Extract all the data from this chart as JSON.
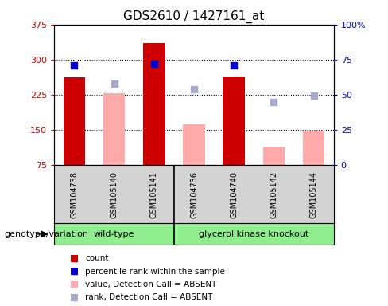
{
  "title": "GDS2610 / 1427161_at",
  "samples": [
    "GSM104738",
    "GSM105140",
    "GSM105141",
    "GSM104736",
    "GSM104740",
    "GSM105142",
    "GSM105144"
  ],
  "count_values": [
    262,
    null,
    335,
    null,
    264,
    null,
    null
  ],
  "value_absent": [
    null,
    228,
    null,
    163,
    null,
    115,
    148
  ],
  "rank_absent": [
    null,
    248,
    null,
    237,
    null,
    210,
    224
  ],
  "percentile_rank": [
    71,
    null,
    72,
    null,
    71,
    null,
    null
  ],
  "group_labels": [
    "wild-type",
    "glycerol kinase knockout"
  ],
  "wt_indices": [
    0,
    1,
    2
  ],
  "gk_indices": [
    3,
    4,
    5,
    6
  ],
  "ylim_left": [
    75,
    375
  ],
  "ylim_right": [
    0,
    100
  ],
  "yticks_left": [
    75,
    150,
    225,
    300,
    375
  ],
  "yticks_right": [
    0,
    25,
    50,
    75,
    100
  ],
  "ytick_labels_left": [
    "75",
    "150",
    "225",
    "300",
    "375"
  ],
  "ytick_labels_right": [
    "0",
    "25",
    "50",
    "75",
    "100%"
  ],
  "count_color": "#cc0000",
  "absent_value_color": "#ffaaaa",
  "absent_rank_color": "#aaaacc",
  "percentile_color": "#0000cc",
  "bar_width": 0.55,
  "legend_labels": [
    "count",
    "percentile rank within the sample",
    "value, Detection Call = ABSENT",
    "rank, Detection Call = ABSENT"
  ],
  "legend_colors": [
    "#cc0000",
    "#0000cc",
    "#ffaaaa",
    "#aaaacc"
  ],
  "genotype_label": "genotype/variation",
  "sample_bg_color": "#d3d3d3",
  "group_bg_color": "#90ee90",
  "fig_width": 4.88,
  "fig_height": 3.84
}
